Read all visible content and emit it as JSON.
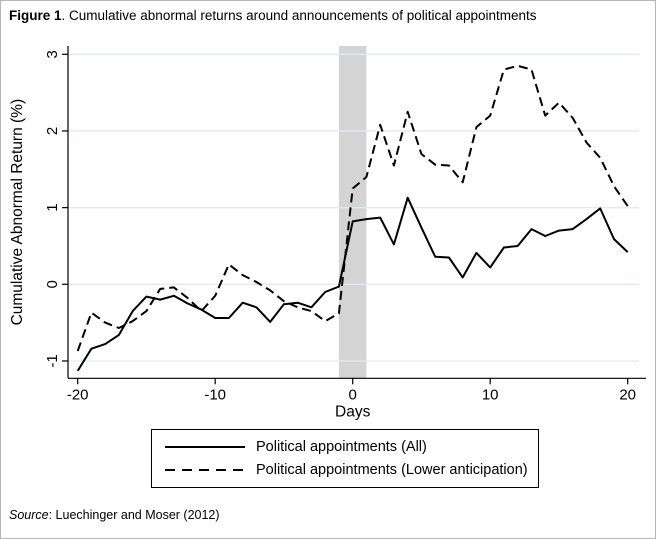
{
  "figure": {
    "label": "Figure 1",
    "title_rest": ". Cumulative abnormal returns around announcements of political appointments"
  },
  "legend": {
    "items": [
      {
        "label": "Political appointments (All)",
        "style": "solid"
      },
      {
        "label": "Political appointments (Lower anticipation)",
        "style": "dashed"
      }
    ]
  },
  "source": {
    "label": "Source",
    "text": ": Luechinger and Moser (2012)"
  },
  "chart_data": {
    "type": "line",
    "title": "Figure 1. Cumulative abnormal returns around announcements of political appointments",
    "xlabel": "Days",
    "ylabel": "Cumulative Abnormal Return (%)",
    "x_ticks": [
      -20,
      -10,
      0,
      10,
      20
    ],
    "y_ticks": [
      -1,
      0,
      1,
      2,
      3
    ],
    "xlim": [
      -20.7,
      21.3
    ],
    "ylim": [
      -1.23,
      3.11
    ],
    "grid": true,
    "grid_color": "#e2e9ef",
    "line_color": "#000000",
    "event_band": {
      "from": -1,
      "to": 1,
      "color": "#d4d4d4"
    },
    "legend_position": "bottom-center",
    "x": [
      -20,
      -19,
      -18,
      -17,
      -16,
      -15,
      -14,
      -13,
      -12,
      -11,
      -10,
      -9,
      -8,
      -7,
      -6,
      -5,
      -4,
      -3,
      -2,
      -1,
      0,
      1,
      2,
      3,
      4,
      5,
      6,
      7,
      8,
      9,
      10,
      11,
      12,
      13,
      14,
      15,
      16,
      17,
      18,
      19,
      20
    ],
    "series": [
      {
        "name": "Political appointments (All)",
        "style": "solid",
        "values": [
          -1.13,
          -0.84,
          -0.78,
          -0.66,
          -0.35,
          -0.16,
          -0.2,
          -0.15,
          -0.25,
          -0.33,
          -0.44,
          -0.44,
          -0.24,
          -0.3,
          -0.49,
          -0.26,
          -0.24,
          -0.3,
          -0.1,
          -0.03,
          0.82,
          0.85,
          0.87,
          0.52,
          1.13,
          0.74,
          0.36,
          0.35,
          0.09,
          0.41,
          0.22,
          0.48,
          0.5,
          0.72,
          0.63,
          0.7,
          0.72,
          0.85,
          0.99,
          0.59,
          0.42
        ]
      },
      {
        "name": "Political appointments (Lower anticipation)",
        "style": "dashed",
        "values": [
          -0.87,
          -0.37,
          -0.5,
          -0.57,
          -0.48,
          -0.35,
          -0.06,
          -0.04,
          -0.18,
          -0.35,
          -0.15,
          0.26,
          0.12,
          0.03,
          -0.08,
          -0.22,
          -0.3,
          -0.35,
          -0.48,
          -0.38,
          1.25,
          1.4,
          2.08,
          1.55,
          2.25,
          1.7,
          1.56,
          1.55,
          1.33,
          2.05,
          2.2,
          2.8,
          2.85,
          2.8,
          2.2,
          2.37,
          2.17,
          1.85,
          1.65,
          1.28,
          1.02
        ]
      }
    ]
  }
}
